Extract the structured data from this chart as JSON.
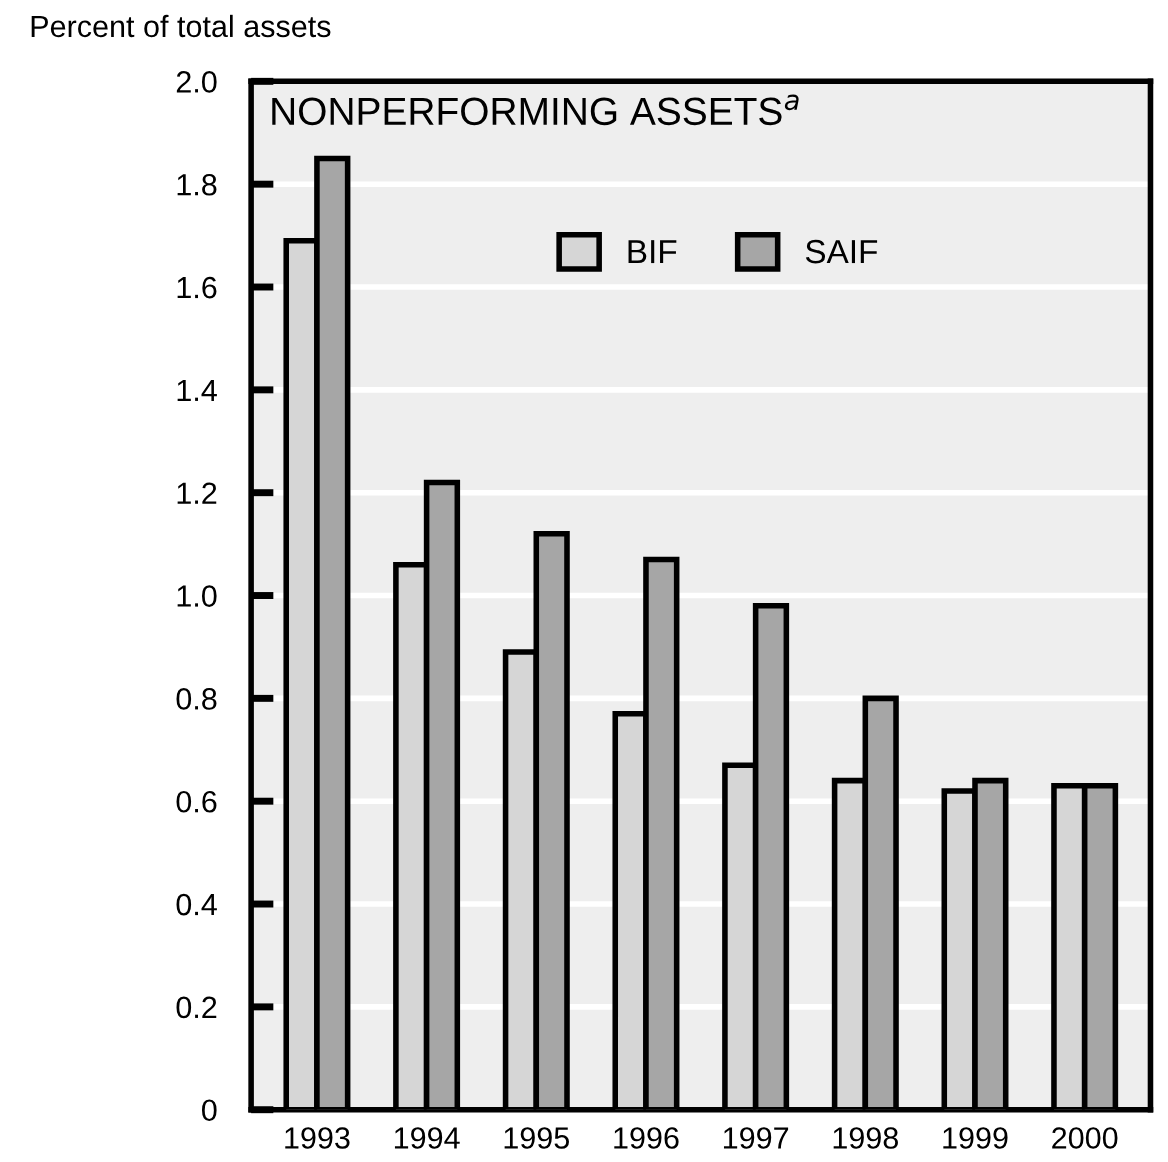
{
  "chart_data": {
    "type": "bar",
    "title": "NONPERFORMING ASSETS$^{a}$",
    "ylabel": "Percent of total assets",
    "categories": [
      "1993",
      "1994",
      "1995",
      "1996",
      "1997",
      "1998",
      "1999",
      "2000"
    ],
    "series": [
      {
        "name": "BIF",
        "color": "#d6d6d6",
        "values": [
          1.69,
          1.06,
          0.89,
          0.77,
          0.67,
          0.64,
          0.62,
          0.63
        ]
      },
      {
        "name": "SAIF",
        "color": "#a6a6a6",
        "values": [
          1.85,
          1.22,
          1.12,
          1.07,
          0.98,
          0.8,
          0.64,
          0.63
        ]
      }
    ],
    "ylim": [
      0,
      2.0
    ],
    "yticks": [
      0,
      0.2,
      0.4,
      0.6,
      0.8,
      {
        "value": 1,
        "label": "1.0"
      },
      1.2,
      1.4,
      1.6,
      1.8,
      {
        "value": 2,
        "label": "2.0"
      }
    ],
    "grid": "y",
    "legend": "top"
  }
}
